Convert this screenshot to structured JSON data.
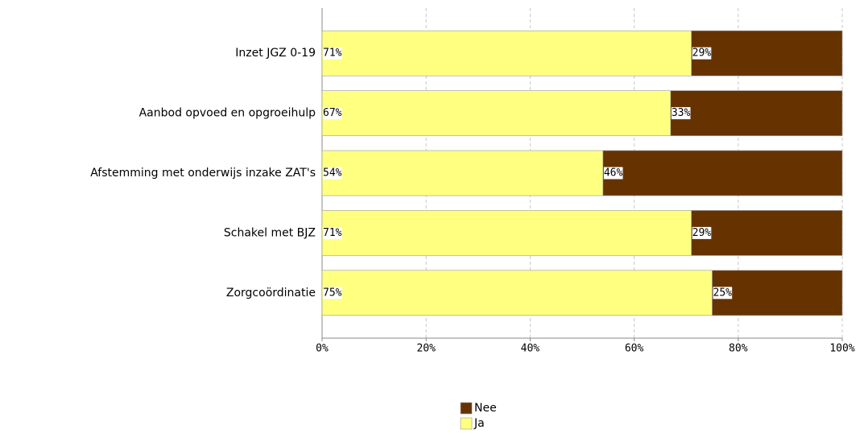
{
  "chart_data": {
    "type": "stacked_barh",
    "categories": [
      "Inzet JGZ 0-19",
      "Aanbod opvoed en opgroeihulp",
      "Afstemming met onderwijs inzake ZAT's",
      "Schakel met BJZ",
      "Zorgcoördinatie"
    ],
    "series": [
      {
        "name": "Ja",
        "color": "#ffff80",
        "values": [
          71,
          67,
          54,
          71,
          75
        ],
        "value_labels": [
          "71%",
          "67%",
          "54%",
          "71%",
          "75%"
        ]
      },
      {
        "name": "Nee",
        "color": "#663300",
        "values": [
          29,
          33,
          46,
          29,
          25
        ],
        "value_labels": [
          "29%",
          "33%",
          "46%",
          "29%",
          "25%"
        ]
      }
    ],
    "xlim": [
      0,
      100
    ],
    "xticks": [
      {
        "value": 0,
        "label": "0%"
      },
      {
        "value": 20,
        "label": "20%"
      },
      {
        "value": 40,
        "label": "40%"
      },
      {
        "value": 60,
        "label": "60%"
      },
      {
        "value": 80,
        "label": "80%"
      },
      {
        "value": 100,
        "label": "100%"
      }
    ],
    "grid": true,
    "legend": "bottom"
  }
}
